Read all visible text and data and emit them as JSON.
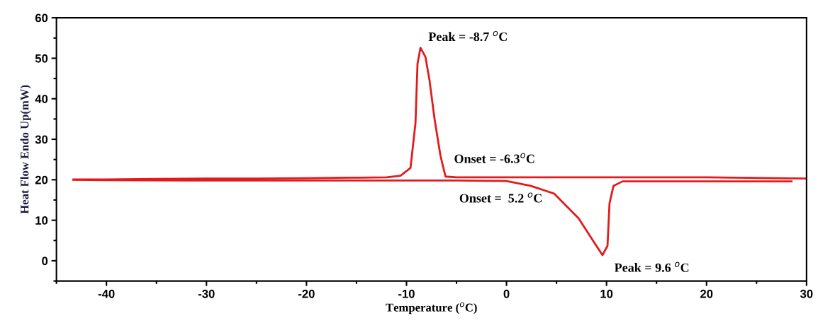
{
  "chart_data": {
    "type": "line",
    "xlabel": "Temperature ($^{o}$C)",
    "ylabel": "Heat Flow Endo Up(mW)",
    "xlim": [
      -45,
      30
    ],
    "xticks": [
      -40,
      -30,
      -20,
      -10,
      0,
      10,
      20,
      30
    ],
    "ylim": [
      -5,
      60
    ],
    "yticks": [
      0,
      10,
      20,
      30,
      40,
      50,
      60
    ],
    "grid": false,
    "legend": false,
    "marker": "none",
    "line_style": "solid",
    "series": [
      {
        "color": "#e31a1c",
        "x": [
          -43.3,
          -40,
          -35,
          -30,
          -25,
          -20,
          -15.6,
          -12,
          -10.6,
          -9.6,
          -9.1,
          -8.9,
          -8.6,
          -8.1,
          -7.7,
          -7.2,
          -6.6,
          -6.1,
          -5,
          0,
          10,
          20,
          30
        ],
        "values": [
          20.1,
          20.1,
          20.2,
          20.3,
          20.3,
          20.4,
          20.5,
          20.6,
          21,
          22.9,
          34,
          48.6,
          52.6,
          50.3,
          44.6,
          35.1,
          25.9,
          20.8,
          20.6,
          20.6,
          20.6,
          20.6,
          20.3
        ]
      },
      {
        "color": "#e31a1c",
        "x": [
          -43.3,
          -40,
          -30,
          -20,
          -10,
          -5,
          0,
          2.4,
          4.75,
          7.2,
          8.8,
          9.6,
          10.1,
          10.3,
          10.7,
          11.6,
          15,
          20,
          28.5
        ],
        "values": [
          20.0,
          19.9,
          19.8,
          19.8,
          19.8,
          19.8,
          19.7,
          18.5,
          16.6,
          10.5,
          4.4,
          1.4,
          3.7,
          14.2,
          18.5,
          19.6,
          19.6,
          19.6,
          19.6
        ]
      }
    ],
    "annotations": [
      {
        "text": "Peak = -8.7 $^{o}$C",
        "x": -8.6,
        "y": 52.6
      },
      "Onset = -6.3$^{o}$C",
      "Onset =  5.2 $^{o}$C",
      {
        "text": "Peak = 9.6 $^{o}$C",
        "x": 9.6,
        "y": 1.4
      }
    ]
  }
}
